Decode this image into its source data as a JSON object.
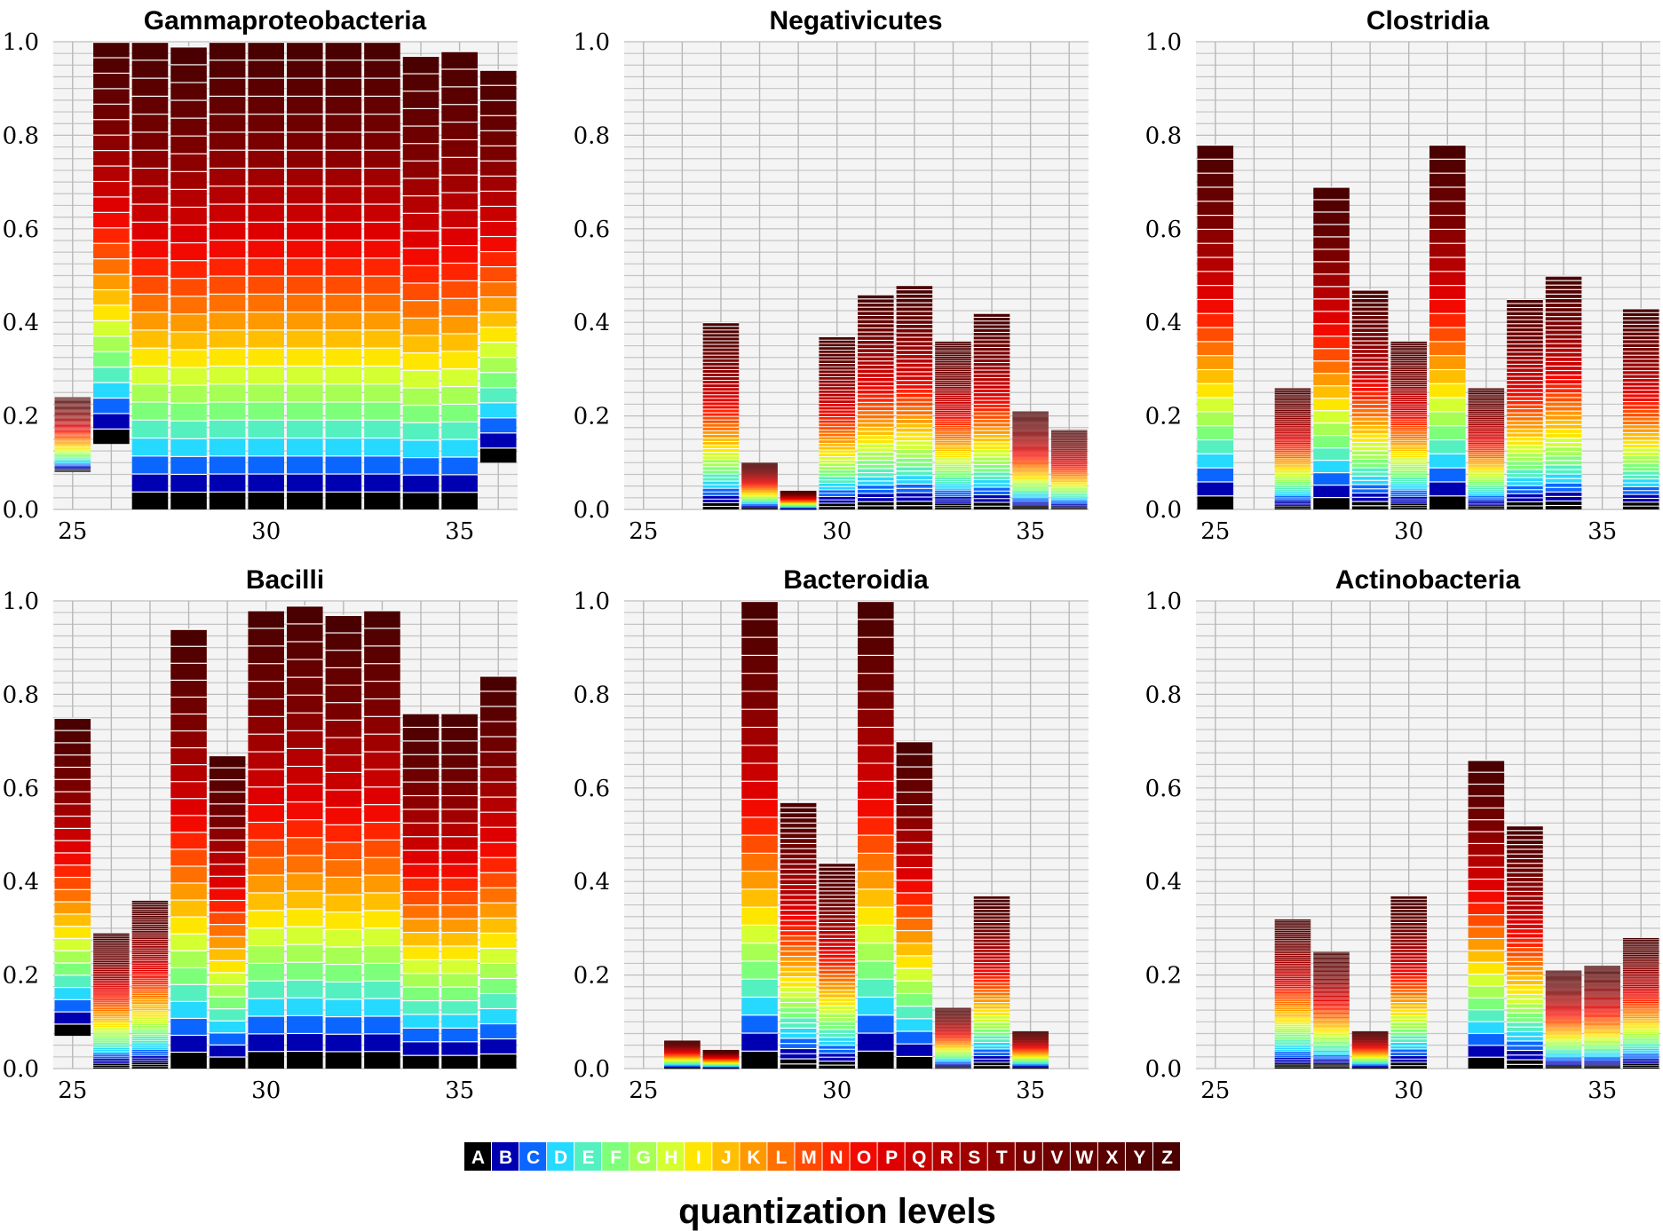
{
  "legend": {
    "title": "quantization levels",
    "levels": [
      "A",
      "B",
      "C",
      "D",
      "E",
      "F",
      "G",
      "H",
      "I",
      "J",
      "K",
      "L",
      "M",
      "N",
      "O",
      "P",
      "Q",
      "R",
      "S",
      "T",
      "U",
      "V",
      "W",
      "X",
      "Y",
      "Z"
    ],
    "colors": [
      "#000000",
      "#0000b3",
      "#0b66ff",
      "#26d9ff",
      "#55f0c0",
      "#7dff7a",
      "#a6ff52",
      "#d4ff30",
      "#ffe600",
      "#ffbf00",
      "#ff9900",
      "#ff7000",
      "#ff4c00",
      "#ff2400",
      "#f20a00",
      "#de0000",
      "#c80000",
      "#b40000",
      "#a00000",
      "#8c0000",
      "#7a0000",
      "#6e0000",
      "#640000",
      "#5a0000",
      "#520000",
      "#4a0000"
    ]
  },
  "chart_data": [
    {
      "type": "bar",
      "title": "Gammaproteobacteria",
      "x": [
        25,
        26,
        27,
        28,
        29,
        30,
        31,
        32,
        33,
        34,
        35,
        36
      ],
      "x_ticks": [
        25,
        30,
        35
      ],
      "ylim": [
        0,
        1.0
      ],
      "y_ticks": [
        "0.0",
        "0.2",
        "0.4",
        "0.6",
        "0.8",
        "1.0"
      ],
      "series": [
        {
          "bottoms": [
            0.08,
            0.14,
            0.0,
            0.0,
            0.0,
            0.0,
            0.0,
            0.0,
            0.0,
            0.0,
            0.0,
            0.1
          ],
          "tops": [
            0.24,
            1.0,
            1.0,
            0.99,
            1.0,
            1.0,
            1.0,
            1.0,
            1.0,
            0.97,
            0.98,
            0.94
          ]
        }
      ]
    },
    {
      "type": "bar",
      "title": "Negativicutes",
      "x": [
        25,
        26,
        27,
        28,
        29,
        30,
        31,
        32,
        33,
        34,
        35,
        36
      ],
      "x_ticks": [
        25,
        30,
        35
      ],
      "ylim": [
        0,
        1.0
      ],
      "y_ticks": [
        "0.0",
        "0.2",
        "0.4",
        "0.6",
        "0.8",
        "1.0"
      ],
      "series": [
        {
          "bottoms": [
            0.0,
            0.0,
            0.0,
            0.0,
            0.0,
            0.0,
            0.0,
            0.0,
            0.0,
            0.0,
            0.0,
            0.0
          ],
          "tops": [
            0.0,
            0.0,
            0.4,
            0.1,
            0.04,
            0.37,
            0.46,
            0.48,
            0.36,
            0.42,
            0.21,
            0.17
          ]
        }
      ]
    },
    {
      "type": "bar",
      "title": "Clostridia",
      "x": [
        25,
        26,
        27,
        28,
        29,
        30,
        31,
        32,
        33,
        34,
        35,
        36
      ],
      "x_ticks": [
        25,
        30,
        35
      ],
      "ylim": [
        0,
        1.0
      ],
      "y_ticks": [
        "0.0",
        "0.2",
        "0.4",
        "0.6",
        "0.8",
        "1.0"
      ],
      "series": [
        {
          "bottoms": [
            0.0,
            0.0,
            0.0,
            0.0,
            0.0,
            0.0,
            0.0,
            0.0,
            0.0,
            0.0,
            0.0,
            0.0
          ],
          "tops": [
            0.78,
            0.0,
            0.26,
            0.69,
            0.47,
            0.36,
            0.78,
            0.26,
            0.45,
            0.5,
            0.0,
            0.43
          ]
        }
      ]
    },
    {
      "type": "bar",
      "title": "Bacilli",
      "x": [
        25,
        26,
        27,
        28,
        29,
        30,
        31,
        32,
        33,
        34,
        35,
        36
      ],
      "x_ticks": [
        25,
        30,
        35
      ],
      "ylim": [
        0,
        1.0
      ],
      "y_ticks": [
        "0.0",
        "0.2",
        "0.4",
        "0.6",
        "0.8",
        "1.0"
      ],
      "series": [
        {
          "bottoms": [
            0.07,
            0.0,
            0.0,
            0.0,
            0.0,
            0.0,
            0.0,
            0.0,
            0.0,
            0.0,
            0.0,
            0.0
          ],
          "tops": [
            0.75,
            0.29,
            0.36,
            0.94,
            0.67,
            0.98,
            0.99,
            0.97,
            0.98,
            0.76,
            0.76,
            0.84
          ]
        }
      ]
    },
    {
      "type": "bar",
      "title": "Bacteroidia",
      "x": [
        25,
        26,
        27,
        28,
        29,
        30,
        31,
        32,
        33,
        34,
        35,
        36
      ],
      "x_ticks": [
        25,
        30,
        35
      ],
      "ylim": [
        0,
        1.0
      ],
      "y_ticks": [
        "0.0",
        "0.2",
        "0.4",
        "0.6",
        "0.8",
        "1.0"
      ],
      "series": [
        {
          "bottoms": [
            0.0,
            0.0,
            0.0,
            0.0,
            0.0,
            0.0,
            0.0,
            0.0,
            0.0,
            0.0,
            0.0,
            0.0
          ],
          "tops": [
            0.0,
            0.06,
            0.04,
            1.0,
            0.57,
            0.44,
            1.0,
            0.7,
            0.13,
            0.37,
            0.08,
            0.0
          ]
        }
      ]
    },
    {
      "type": "bar",
      "title": "Actinobacteria",
      "x": [
        25,
        26,
        27,
        28,
        29,
        30,
        31,
        32,
        33,
        34,
        35,
        36
      ],
      "x_ticks": [
        25,
        30,
        35
      ],
      "ylim": [
        0,
        1.0
      ],
      "y_ticks": [
        "0.0",
        "0.2",
        "0.4",
        "0.6",
        "0.8",
        "1.0"
      ],
      "series": [
        {
          "bottoms": [
            0.0,
            0.0,
            0.0,
            0.0,
            0.0,
            0.0,
            0.0,
            0.0,
            0.0,
            0.0,
            0.0,
            0.0
          ],
          "tops": [
            0.0,
            0.0,
            0.32,
            0.25,
            0.08,
            0.37,
            0.0,
            0.66,
            0.52,
            0.21,
            0.22,
            0.28
          ]
        }
      ]
    }
  ]
}
